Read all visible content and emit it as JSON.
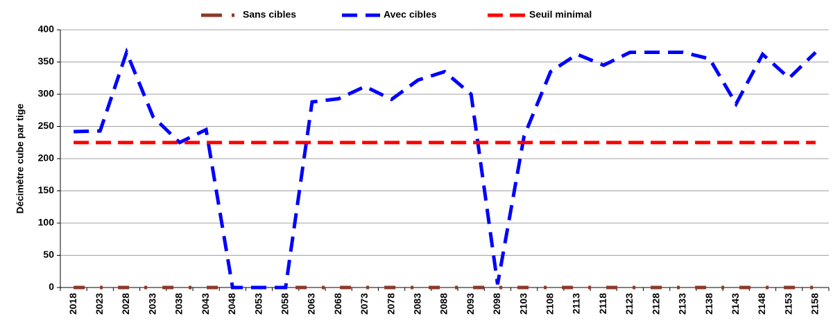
{
  "chart_data": {
    "type": "line",
    "y_label": "Décimètre cube par tige",
    "categories": [
      "2018",
      "2023",
      "2028",
      "2033",
      "2038",
      "2043",
      "2048",
      "2053",
      "2058",
      "2063",
      "2068",
      "2073",
      "2078",
      "2083",
      "2088",
      "2093",
      "2098",
      "2103",
      "2108",
      "2113",
      "2118",
      "2123",
      "2128",
      "2133",
      "2138",
      "2143",
      "2148",
      "2153",
      "2158"
    ],
    "series": [
      {
        "name": "Sans cibles",
        "color": "#8b3a2a",
        "values": [
          0,
          0,
          0,
          0,
          0,
          0,
          0,
          0,
          0,
          0,
          0,
          0,
          0,
          0,
          0,
          0,
          0,
          0,
          0,
          0,
          0,
          0,
          0,
          0,
          0,
          0,
          0,
          0,
          0
        ]
      },
      {
        "name": "Avec cibles",
        "color": "#0000ff",
        "values": [
          242,
          243,
          365,
          265,
          225,
          245,
          0,
          0,
          0,
          288,
          293,
          312,
          292,
          322,
          335,
          300,
          5,
          235,
          335,
          362,
          345,
          365,
          365,
          365,
          355,
          285,
          362,
          325,
          365
        ]
      },
      {
        "name": "Seuil minimal",
        "color": "#ff0000",
        "values": [
          225,
          225,
          225,
          225,
          225,
          225,
          225,
          225,
          225,
          225,
          225,
          225,
          225,
          225,
          225,
          225,
          225,
          225,
          225,
          225,
          225,
          225,
          225,
          225,
          225,
          225,
          225,
          225,
          225
        ]
      }
    ],
    "ylim": [
      0,
      400
    ],
    "yticks": [
      0,
      50,
      100,
      150,
      200,
      250,
      300,
      350,
      400
    ],
    "grid": true,
    "legend": "top"
  }
}
